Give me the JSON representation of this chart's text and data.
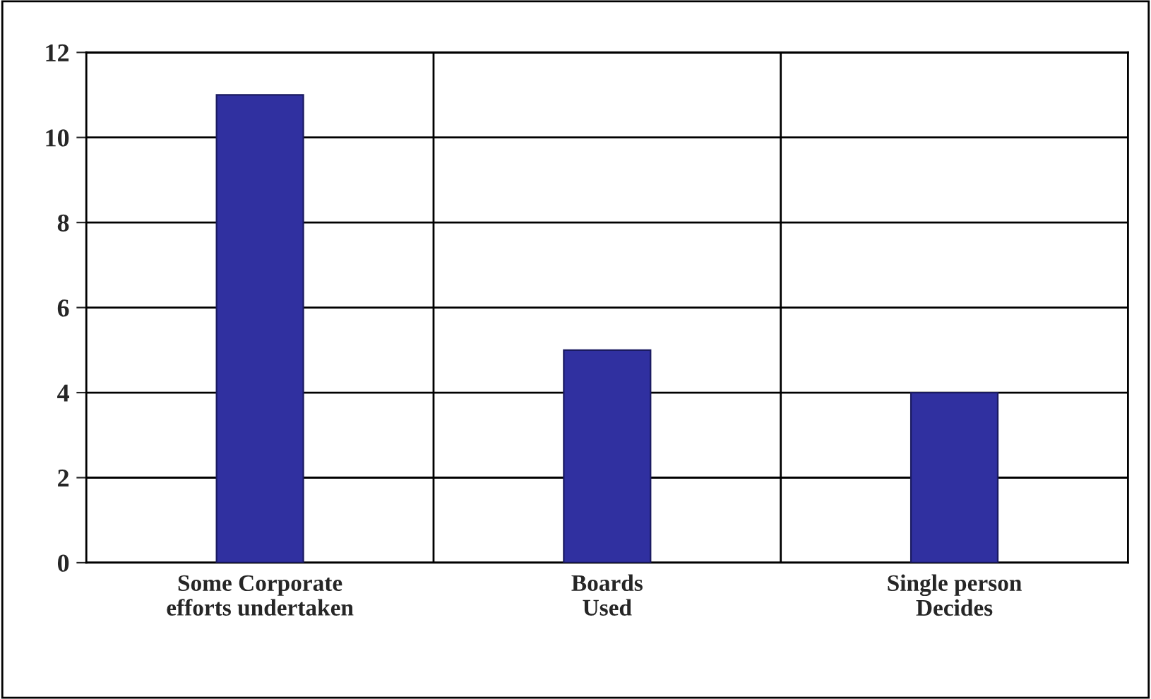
{
  "chart_data": {
    "type": "bar",
    "categories": [
      "Some Corporate\nefforts undertaken",
      "Boards\nUsed",
      "Single person\nDecides"
    ],
    "values": [
      11,
      5,
      4
    ],
    "color": "#3030a0",
    "ylim": [
      0,
      12
    ],
    "yticks": [
      0,
      2,
      4,
      6,
      8,
      10,
      12
    ],
    "grid": true
  }
}
